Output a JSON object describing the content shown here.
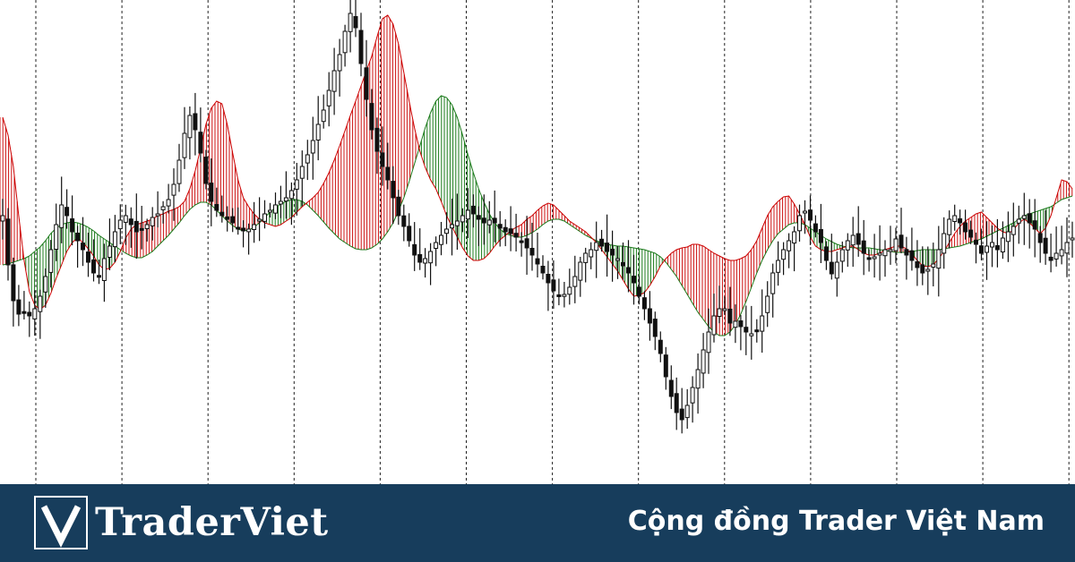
{
  "chart_data": {
    "type": "candlestick",
    "grid": "vertical dashed lines",
    "indicator": "two moving averages with filled band (red when fast above slow, green when fast below slow)",
    "colors": {
      "background": "#ffffff",
      "candle": "#111111",
      "bull_fill": "#cc1111",
      "bear_fill": "#1a7a1a",
      "fast_line": "#cc0000",
      "slow_line": "#1a7a1a",
      "grid": "#222222"
    },
    "close_series": [
      300,
      245,
      205,
      190,
      192,
      188,
      196,
      210,
      232,
      262,
      290,
      312,
      300,
      282,
      272,
      262,
      248,
      236,
      232,
      252,
      266,
      282,
      295,
      300,
      290,
      282,
      285,
      290,
      298,
      302,
      310,
      318,
      335,
      362,
      392,
      412,
      396,
      370,
      336,
      316,
      306,
      300,
      296,
      292,
      287,
      283,
      285,
      290,
      296,
      302,
      306,
      312,
      316,
      320,
      328,
      340,
      355,
      368,
      384,
      402,
      418,
      440,
      462,
      480,
      506,
      526,
      510,
      470,
      430,
      396,
      372,
      355,
      340,
      320,
      300,
      288,
      272,
      256,
      248,
      252,
      260,
      270,
      278,
      285,
      290,
      294,
      300,
      306,
      302,
      296,
      292,
      295,
      292,
      286,
      282,
      280,
      276,
      270,
      264,
      256,
      246,
      236,
      225,
      216,
      210,
      212,
      220,
      232,
      248,
      258,
      262,
      270,
      266,
      260,
      256,
      252,
      244,
      236,
      225,
      210,
      196,
      180,
      165,
      146,
      120,
      98,
      80,
      72,
      88,
      108,
      128,
      150,
      170,
      188,
      196,
      196,
      180,
      182,
      176,
      170,
      168,
      172,
      188,
      210,
      236,
      250,
      262,
      272,
      282,
      300,
      305,
      295,
      282,
      270,
      250,
      235,
      248,
      262,
      272,
      278,
      268,
      258,
      252,
      254,
      258,
      262,
      262,
      274,
      264,
      256,
      250,
      242,
      236,
      240,
      246,
      262,
      280,
      296,
      300,
      292,
      282,
      276,
      268,
      258,
      266,
      270,
      262,
      275,
      282,
      288,
      296,
      300,
      292,
      285,
      270,
      258,
      250,
      258,
      262,
      270,
      275
    ],
    "fast_ma": [
      410,
      390,
      355,
      300,
      250,
      215,
      200,
      195,
      200,
      213,
      230,
      245,
      260,
      270,
      275,
      270,
      263,
      255,
      245,
      240,
      241,
      248,
      260,
      275,
      285,
      290,
      292,
      294,
      296,
      300,
      302,
      305,
      307,
      310,
      316,
      330,
      350,
      375,
      402,
      420,
      428,
      425,
      402,
      370,
      340,
      320,
      310,
      302,
      296,
      292,
      290,
      288,
      290,
      294,
      298,
      304,
      310,
      315,
      320,
      326,
      336,
      348,
      362,
      378,
      395,
      412,
      428,
      445,
      462,
      478,
      500,
      520,
      524,
      514,
      492,
      460,
      428,
      398,
      372,
      354,
      340,
      330,
      316,
      300,
      288,
      276,
      264,
      255,
      250,
      250,
      252,
      258,
      266,
      273,
      278,
      283,
      287,
      290,
      296,
      300,
      306,
      311,
      314,
      312,
      306,
      300,
      294,
      290,
      286,
      282,
      276,
      270,
      262,
      254,
      246,
      238,
      228,
      218,
      210,
      211,
      214,
      222,
      232,
      244,
      252,
      258,
      262,
      264,
      265,
      268,
      268,
      266,
      262,
      258,
      255,
      252,
      250,
      250,
      252,
      255,
      262,
      272,
      286,
      300,
      310,
      316,
      321,
      322,
      313,
      302,
      290,
      276,
      266,
      262,
      260,
      260,
      262,
      264,
      266,
      266,
      262,
      258,
      256,
      256,
      258,
      262,
      264,
      266,
      266,
      263,
      257,
      250,
      244,
      243,
      245,
      252,
      260,
      270,
      280,
      288,
      294,
      298,
      302,
      304,
      298,
      292,
      286,
      282,
      280,
      284,
      292,
      296,
      292,
      286,
      280,
      286,
      300,
      320,
      340,
      338,
      330
    ],
    "slow_ma": [
      245,
      246,
      248,
      250,
      252,
      255,
      260,
      265,
      272,
      280,
      286,
      290,
      292,
      293,
      292,
      290,
      287,
      283,
      278,
      274,
      270,
      266,
      262,
      258,
      255,
      253,
      253,
      256,
      260,
      266,
      272,
      278,
      285,
      292,
      300,
      307,
      312,
      315,
      315,
      312,
      306,
      300,
      294,
      289,
      285,
      283,
      284,
      287,
      292,
      298,
      304,
      309,
      313,
      316,
      318,
      318,
      316,
      312,
      306,
      300,
      293,
      286,
      280,
      274,
      270,
      266,
      263,
      262,
      262,
      264,
      268,
      274,
      282,
      292,
      305,
      320,
      338,
      358,
      378,
      398,
      415,
      428,
      434,
      432,
      424,
      410,
      390,
      368,
      348,
      330,
      315,
      302,
      292,
      285,
      280,
      278,
      276,
      276,
      278,
      281,
      285,
      290,
      294,
      296,
      296,
      294,
      290,
      286,
      282,
      278,
      275,
      272,
      270,
      268,
      267,
      266,
      266,
      265,
      264,
      263,
      262,
      260,
      258,
      254,
      248,
      240,
      232,
      222,
      212,
      202,
      192,
      184,
      176,
      170,
      166,
      166,
      170,
      178,
      190,
      204,
      220,
      236,
      250,
      262,
      272,
      280,
      285,
      290,
      292,
      292,
      290,
      286,
      282,
      278,
      274,
      271,
      268,
      266,
      265,
      264,
      264,
      264,
      264,
      263,
      262,
      261,
      260,
      259,
      259,
      259,
      260,
      261,
      262,
      262,
      262,
      262,
      263,
      264,
      265,
      266,
      268,
      270,
      272,
      274,
      277,
      280,
      283,
      286,
      289,
      292,
      296,
      300,
      302,
      304,
      306,
      308,
      310,
      314,
      318,
      320,
      322
    ]
  },
  "brand": {
    "logo_text": "TraderViet",
    "logo_mark": "V-mark-icon",
    "tagline": "Cộng đồng Trader Việt Nam",
    "footer_color": "#173d5c"
  }
}
